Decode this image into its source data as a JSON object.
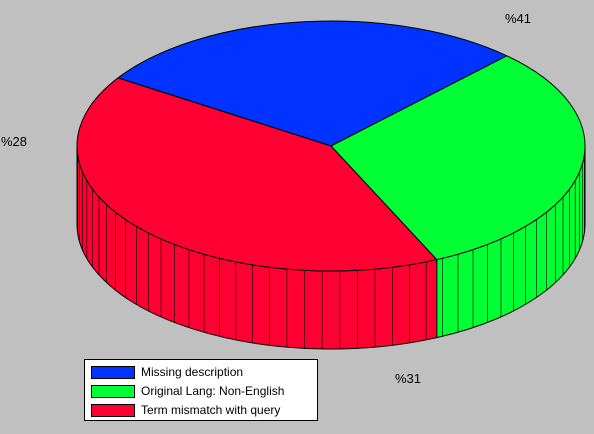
{
  "chart_data": {
    "type": "pie",
    "style": "3d",
    "title": "",
    "slices": [
      {
        "name": "Missing description",
        "value": 28,
        "label": "%28",
        "color": "#0033ff"
      },
      {
        "name": "Original Lang: Non-English",
        "value": 31,
        "label": "%31",
        "color": "#00ff33"
      },
      {
        "name": "Term mismatch with query",
        "value": 41,
        "label": "%41",
        "color": "#ff0033"
      }
    ],
    "legend_placement": "bottom-left"
  }
}
